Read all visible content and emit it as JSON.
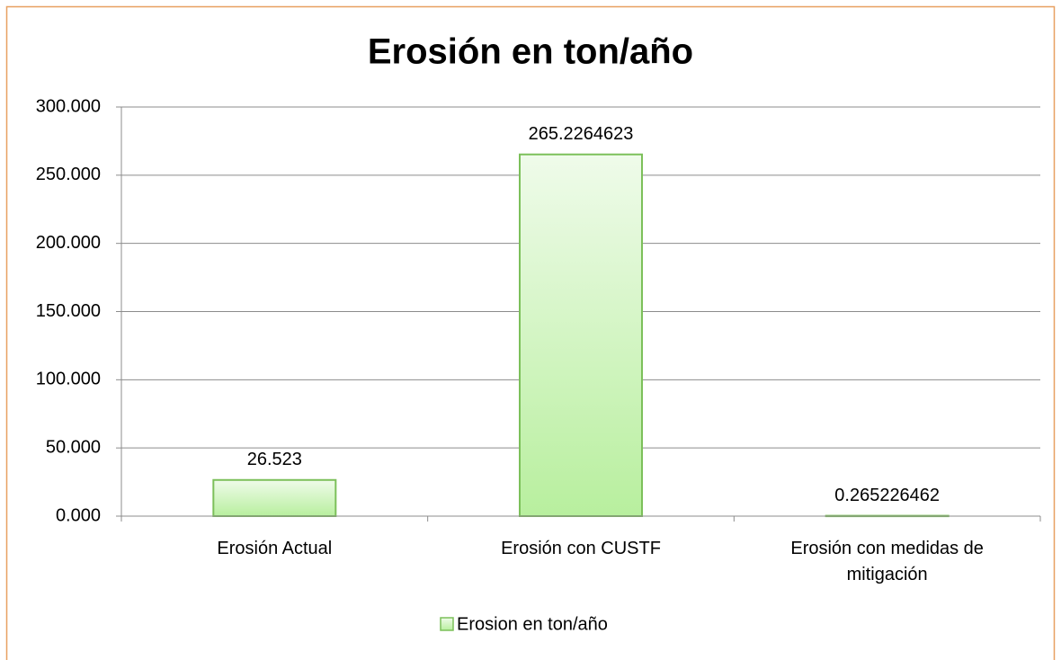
{
  "chart_data": {
    "type": "bar",
    "title": "Erosión en ton/año",
    "categories": [
      "Erosión Actual",
      "Erosión con CUSTF",
      "Erosión con medidas de mitigación"
    ],
    "series": [
      {
        "name": "Erosion en ton/año",
        "color": "#7cc05a",
        "values": [
          26.523,
          265.2264623,
          0.265226462
        ]
      }
    ],
    "ylim": [
      0,
      300
    ],
    "yticks": [
      {
        "value": 0,
        "label": "0.000"
      },
      {
        "value": 50,
        "label": "50.000"
      },
      {
        "value": 100,
        "label": "100.000"
      },
      {
        "value": 150,
        "label": "150.000"
      },
      {
        "value": 200,
        "label": "200.000"
      },
      {
        "value": 250,
        "label": "250.000"
      },
      {
        "value": 300,
        "label": "300.000"
      }
    ],
    "grid": true,
    "legend": "bottom"
  }
}
